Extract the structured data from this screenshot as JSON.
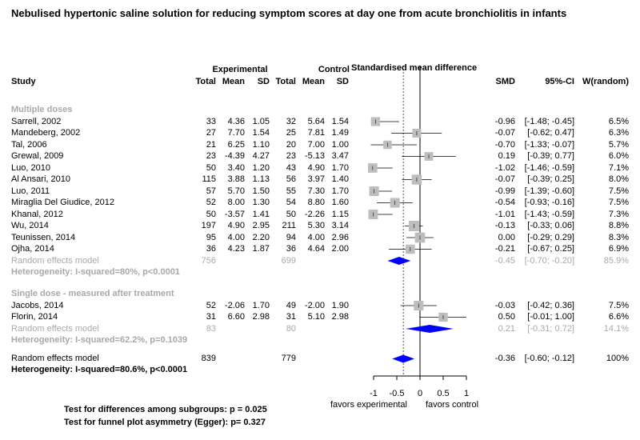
{
  "title": "Nebulised hypertonic saline solution for reducing symptom scores at day one from acute bronchiolitis in infants",
  "headers": {
    "experimental": "Experimental",
    "control": "Control",
    "effect": "Standardised mean difference",
    "study": "Study",
    "total": "Total",
    "mean": "Mean",
    "sd": "SD",
    "smd": "SMD",
    "ci": "95%-CI",
    "weight": "W(random)"
  },
  "chart_data": {
    "type": "forest",
    "xlim": [
      -1.0,
      1.0
    ],
    "ticks": [
      "-1",
      "-0.5",
      "0",
      "0.5",
      "1"
    ],
    "tick_values": [
      -1,
      -0.5,
      0,
      0.5,
      1
    ],
    "reference_line": 0,
    "overall_line": -0.36,
    "favors_left": "favors experimental",
    "favors_right": "favors control",
    "groups": [
      {
        "label": "Multiple doses",
        "studies": [
          {
            "study": "Sarrell, 2002",
            "e_total": "33",
            "e_mean": "4.36",
            "e_sd": "1.05",
            "c_total": "32",
            "c_mean": "5.64",
            "c_sd": "1.54",
            "smd": -0.96,
            "lo": -1.48,
            "hi": -0.45,
            "smd_text": "-0.96",
            "ci_text": "[-1.48; -0.45]",
            "weight": "6.5%",
            "w": 6.5
          },
          {
            "study": "Mandeberg, 2002",
            "e_total": "27",
            "e_mean": "7.70",
            "e_sd": "1.54",
            "c_total": "25",
            "c_mean": "7.81",
            "c_sd": "1.49",
            "smd": -0.07,
            "lo": -0.62,
            "hi": 0.47,
            "smd_text": "-0.07",
            "ci_text": "[-0.62;  0.47]",
            "weight": "6.3%",
            "w": 6.3
          },
          {
            "study": "Tal, 2006",
            "e_total": "21",
            "e_mean": "6.25",
            "e_sd": "1.10",
            "c_total": "20",
            "c_mean": "7.00",
            "c_sd": "1.00",
            "smd": -0.7,
            "lo": -1.33,
            "hi": -0.07,
            "smd_text": "-0.70",
            "ci_text": "[-1.33; -0.07]",
            "weight": "5.7%",
            "w": 5.7
          },
          {
            "study": "Grewal, 2009",
            "e_total": "23",
            "e_mean": "-4.39",
            "e_sd": "4.27",
            "c_total": "23",
            "c_mean": "-5.13",
            "c_sd": "3.47",
            "smd": 0.19,
            "lo": -0.39,
            "hi": 0.77,
            "smd_text": "0.19",
            "ci_text": "[-0.39;  0.77]",
            "weight": "6.0%",
            "w": 6.0
          },
          {
            "study": "Luo, 2010",
            "e_total": "50",
            "e_mean": "3.40",
            "e_sd": "1.20",
            "c_total": "43",
            "c_mean": "4.90",
            "c_sd": "1.70",
            "smd": -1.02,
            "lo": -1.46,
            "hi": -0.59,
            "smd_text": "-1.02",
            "ci_text": "[-1.46; -0.59]",
            "weight": "7.1%",
            "w": 7.1
          },
          {
            "study": "Al Ansari, 2010",
            "e_total": "115",
            "e_mean": "3.88",
            "e_sd": "1.13",
            "c_total": "56",
            "c_mean": "3.97",
            "c_sd": "1.40",
            "smd": -0.07,
            "lo": -0.39,
            "hi": 0.25,
            "smd_text": "-0.07",
            "ci_text": "[-0.39;  0.25]",
            "weight": "8.0%",
            "w": 8.0
          },
          {
            "study": "Luo, 2011",
            "e_total": "57",
            "e_mean": "5.70",
            "e_sd": "1.50",
            "c_total": "55",
            "c_mean": "7.30",
            "c_sd": "1.70",
            "smd": -0.99,
            "lo": -1.39,
            "hi": -0.6,
            "smd_text": "-0.99",
            "ci_text": "[-1.39; -0.60]",
            "weight": "7.5%",
            "w": 7.5
          },
          {
            "study": "Miraglia Del Giudice, 2012",
            "e_total": "52",
            "e_mean": "8.00",
            "e_sd": "1.30",
            "c_total": "54",
            "c_mean": "8.80",
            "c_sd": "1.60",
            "smd": -0.54,
            "lo": -0.93,
            "hi": -0.16,
            "smd_text": "-0.54",
            "ci_text": "[-0.93; -0.16]",
            "weight": "7.5%",
            "w": 7.5
          },
          {
            "study": "Khanal, 2012",
            "e_total": "50",
            "e_mean": "-3.57",
            "e_sd": "1.41",
            "c_total": "50",
            "c_mean": "-2.26",
            "c_sd": "1.15",
            "smd": -1.01,
            "lo": -1.43,
            "hi": -0.59,
            "smd_text": "-1.01",
            "ci_text": "[-1.43; -0.59]",
            "weight": "7.3%",
            "w": 7.3
          },
          {
            "study": "Wu, 2014",
            "e_total": "197",
            "e_mean": "4.90",
            "e_sd": "2.95",
            "c_total": "211",
            "c_mean": "5.30",
            "c_sd": "3.14",
            "smd": -0.13,
            "lo": -0.33,
            "hi": 0.06,
            "smd_text": "-0.13",
            "ci_text": "[-0.33;  0.06]",
            "weight": "8.8%",
            "w": 8.8
          },
          {
            "study": "Teunissen, 2014",
            "e_total": "95",
            "e_mean": "4.00",
            "e_sd": "2.20",
            "c_total": "94",
            "c_mean": "4.00",
            "c_sd": "2.96",
            "smd": 0.0,
            "lo": -0.29,
            "hi": 0.29,
            "smd_text": "0.00",
            "ci_text": "[-0.29;  0.29]",
            "weight": "8.3%",
            "w": 8.3
          },
          {
            "study": "Ojha, 2014",
            "e_total": "36",
            "e_mean": "4.23",
            "e_sd": "1.87",
            "c_total": "36",
            "c_mean": "4.64",
            "c_sd": "2.00",
            "smd": -0.21,
            "lo": -0.67,
            "hi": 0.25,
            "smd_text": "-0.21",
            "ci_text": "[-0.67;  0.25]",
            "weight": "6.9%",
            "w": 6.9
          }
        ],
        "pooled": {
          "label": "Random effects model",
          "e_total": "756",
          "c_total": "699",
          "smd": -0.45,
          "lo": -0.7,
          "hi": -0.2,
          "smd_text": "-0.45",
          "ci_text": "[-0.70; -0.20]",
          "weight": "85.9%"
        },
        "heterogeneity": "Heterogeneity: I-squared=80%, p<0.0001"
      },
      {
        "label": "Single dose - measured after treatment",
        "studies": [
          {
            "study": "Jacobs, 2014",
            "e_total": "52",
            "e_mean": "-2.06",
            "e_sd": "1.70",
            "c_total": "49",
            "c_mean": "-2.00",
            "c_sd": "1.90",
            "smd": -0.03,
            "lo": -0.42,
            "hi": 0.36,
            "smd_text": "-0.03",
            "ci_text": "[-0.42;  0.36]",
            "weight": "7.5%",
            "w": 7.5
          },
          {
            "study": "Florin, 2014",
            "e_total": "31",
            "e_mean": "6.60",
            "e_sd": "2.98",
            "c_total": "31",
            "c_mean": "5.10",
            "c_sd": "2.98",
            "smd": 0.5,
            "lo": -0.01,
            "hi": 1.0,
            "smd_text": "0.50",
            "ci_text": "[-0.01;  1.00]",
            "weight": "6.6%",
            "w": 6.6
          }
        ],
        "pooled": {
          "label": "Random effects model",
          "e_total": "83",
          "c_total": "80",
          "smd": 0.21,
          "lo": -0.31,
          "hi": 0.72,
          "smd_text": "0.21",
          "ci_text": "[-0.31;  0.72]",
          "weight": "14.1%"
        },
        "heterogeneity": "Heterogeneity: I-squared=62.2%, p=0.1039"
      }
    ],
    "overall": {
      "label": "Random effects model",
      "e_total": "839",
      "c_total": "779",
      "smd": -0.36,
      "lo": -0.6,
      "hi": -0.12,
      "smd_text": "-0.36",
      "ci_text": "[-0.60; -0.12]",
      "weight": "100%"
    },
    "overall_heterogeneity": "Heterogeneity: I-squared=80.6%, p<0.0001",
    "tests": [
      "Test for differences among subgroups: p = 0.025",
      "Test for funnel plot asymmetry (Egger): p= 0.327"
    ]
  }
}
